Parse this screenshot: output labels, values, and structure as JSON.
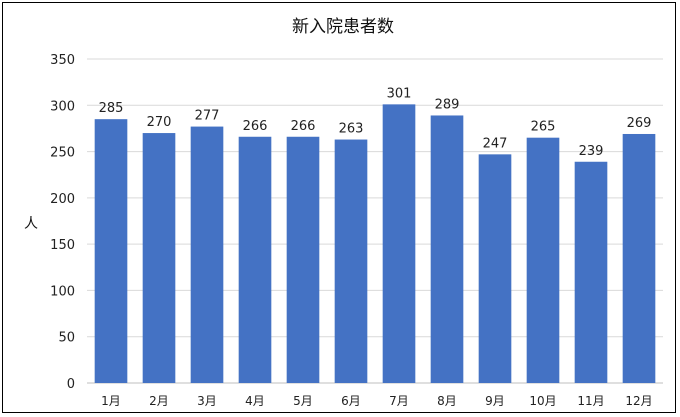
{
  "chart_data": {
    "type": "bar",
    "title": "新入院患者数",
    "ylabel": "人",
    "xlabel": "",
    "categories": [
      "1月",
      "2月",
      "3月",
      "4月",
      "5月",
      "6月",
      "7月",
      "8月",
      "9月",
      "10月",
      "11月",
      "12月"
    ],
    "values": [
      285,
      270,
      277,
      266,
      266,
      263,
      301,
      289,
      247,
      265,
      239,
      269
    ],
    "ylim": [
      0,
      350
    ],
    "yticks": [
      0,
      50,
      100,
      150,
      200,
      250,
      300,
      350
    ],
    "grid": true,
    "legend": "none",
    "bar_color": "#4472c4",
    "grid_color": "#d9d9d9"
  }
}
